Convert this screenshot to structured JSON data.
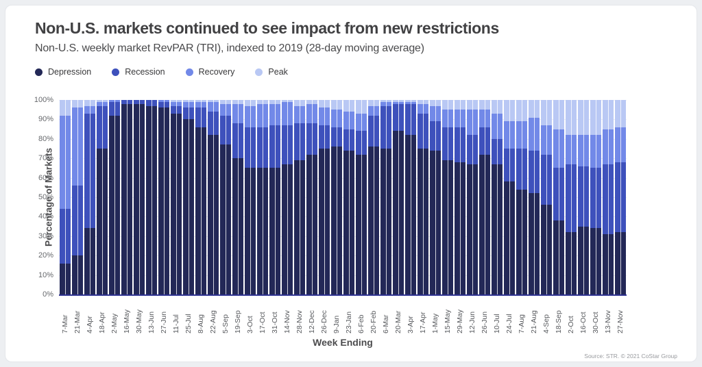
{
  "header": {
    "title": "Non-U.S. markets continued to see impact from new restrictions",
    "subtitle": "Non-U.S. weekly market RevPAR (TRI), indexed to 2019 (28-day moving average)"
  },
  "source": "Source: STR. © 2021 CoStar Group",
  "colors": {
    "axis_line": "#2d3190",
    "gridline": "#edeff6"
  },
  "chart_data": {
    "type": "bar",
    "stacked": true,
    "title": "Non-U.S. markets continued to see impact from new restrictions",
    "subtitle": "Non-U.S. weekly market RevPAR (TRI), indexed to 2019 (28-day moving average)",
    "xlabel": "Week Ending",
    "ylabel": "Percentage of Markets",
    "ylim": [
      0,
      100
    ],
    "yticks": [
      0,
      10,
      20,
      30,
      40,
      50,
      60,
      70,
      80,
      90,
      100
    ],
    "ytick_labels": [
      "0%",
      "10%",
      "20%",
      "30%",
      "40%",
      "50%",
      "60%",
      "70%",
      "80%",
      "90%",
      "100%"
    ],
    "grid": "horizontal-faint",
    "legend_position": "top-left",
    "categories": [
      "7-Mar",
      "21-Mar",
      "4-Apr",
      "18-Apr",
      "2-May",
      "16-May",
      "30-May",
      "13-Jun",
      "27-Jun",
      "11-Jul",
      "25-Jul",
      "8-Aug",
      "22-Aug",
      "5-Sep",
      "19-Sep",
      "3-Oct",
      "17-Oct",
      "31-Oct",
      "14-Nov",
      "28-Nov",
      "12-Dec",
      "26-Dec",
      "9-Jan",
      "23-Jan",
      "6-Feb",
      "20-Feb",
      "6-Mar",
      "20-Mar",
      "3-Apr",
      "17-Apr",
      "1-May",
      "15-May",
      "29-May",
      "12-Jun",
      "26-Jun",
      "10-Jul",
      "24-Jul",
      "7-Aug",
      "21-Aug",
      "4-Sep",
      "18-Sep",
      "2-Oct",
      "16-Oct",
      "30-Oct",
      "13-Nov",
      "27-Nov"
    ],
    "series": [
      {
        "name": "Depression",
        "color": "#232857",
        "values": [
          16,
          20,
          34,
          75,
          92,
          98,
          98,
          97,
          96,
          93,
          90,
          86,
          82,
          77,
          70,
          65,
          65,
          65,
          67,
          69,
          72,
          75,
          76,
          74,
          72,
          76,
          75,
          84,
          82,
          75,
          74,
          69,
          68,
          67,
          72,
          67,
          58,
          54,
          52,
          46,
          38,
          32,
          35,
          34,
          31,
          32
        ]
      },
      {
        "name": "Recession",
        "color": "#3e51bc",
        "values": [
          28,
          36,
          59,
          22,
          7,
          2,
          2,
          3,
          3,
          4,
          6,
          10,
          12,
          15,
          18,
          21,
          21,
          22,
          20,
          19,
          16,
          12,
          10,
          11,
          12,
          16,
          22,
          14,
          16,
          18,
          15,
          17,
          18,
          15,
          14,
          13,
          17,
          21,
          22,
          26,
          27,
          35,
          31,
          31,
          36,
          36
        ]
      },
      {
        "name": "Recovery",
        "color": "#7289e8",
        "values": [
          48,
          40,
          4,
          2,
          1,
          0,
          0,
          0,
          1,
          2,
          3,
          3,
          5,
          6,
          10,
          11,
          12,
          11,
          12,
          9,
          10,
          9,
          9,
          9,
          9,
          5,
          2,
          1,
          1,
          5,
          8,
          9,
          9,
          13,
          9,
          13,
          14,
          14,
          17,
          15,
          20,
          15,
          16,
          17,
          18,
          18
        ]
      },
      {
        "name": "Peak",
        "color": "#b9c8f4",
        "values": [
          8,
          4,
          3,
          1,
          0,
          0,
          0,
          0,
          0,
          1,
          1,
          1,
          1,
          2,
          2,
          3,
          2,
          2,
          1,
          3,
          2,
          4,
          5,
          6,
          7,
          3,
          1,
          1,
          1,
          2,
          3,
          5,
          5,
          5,
          5,
          7,
          11,
          11,
          9,
          13,
          15,
          18,
          18,
          18,
          15,
          14
        ]
      }
    ]
  }
}
